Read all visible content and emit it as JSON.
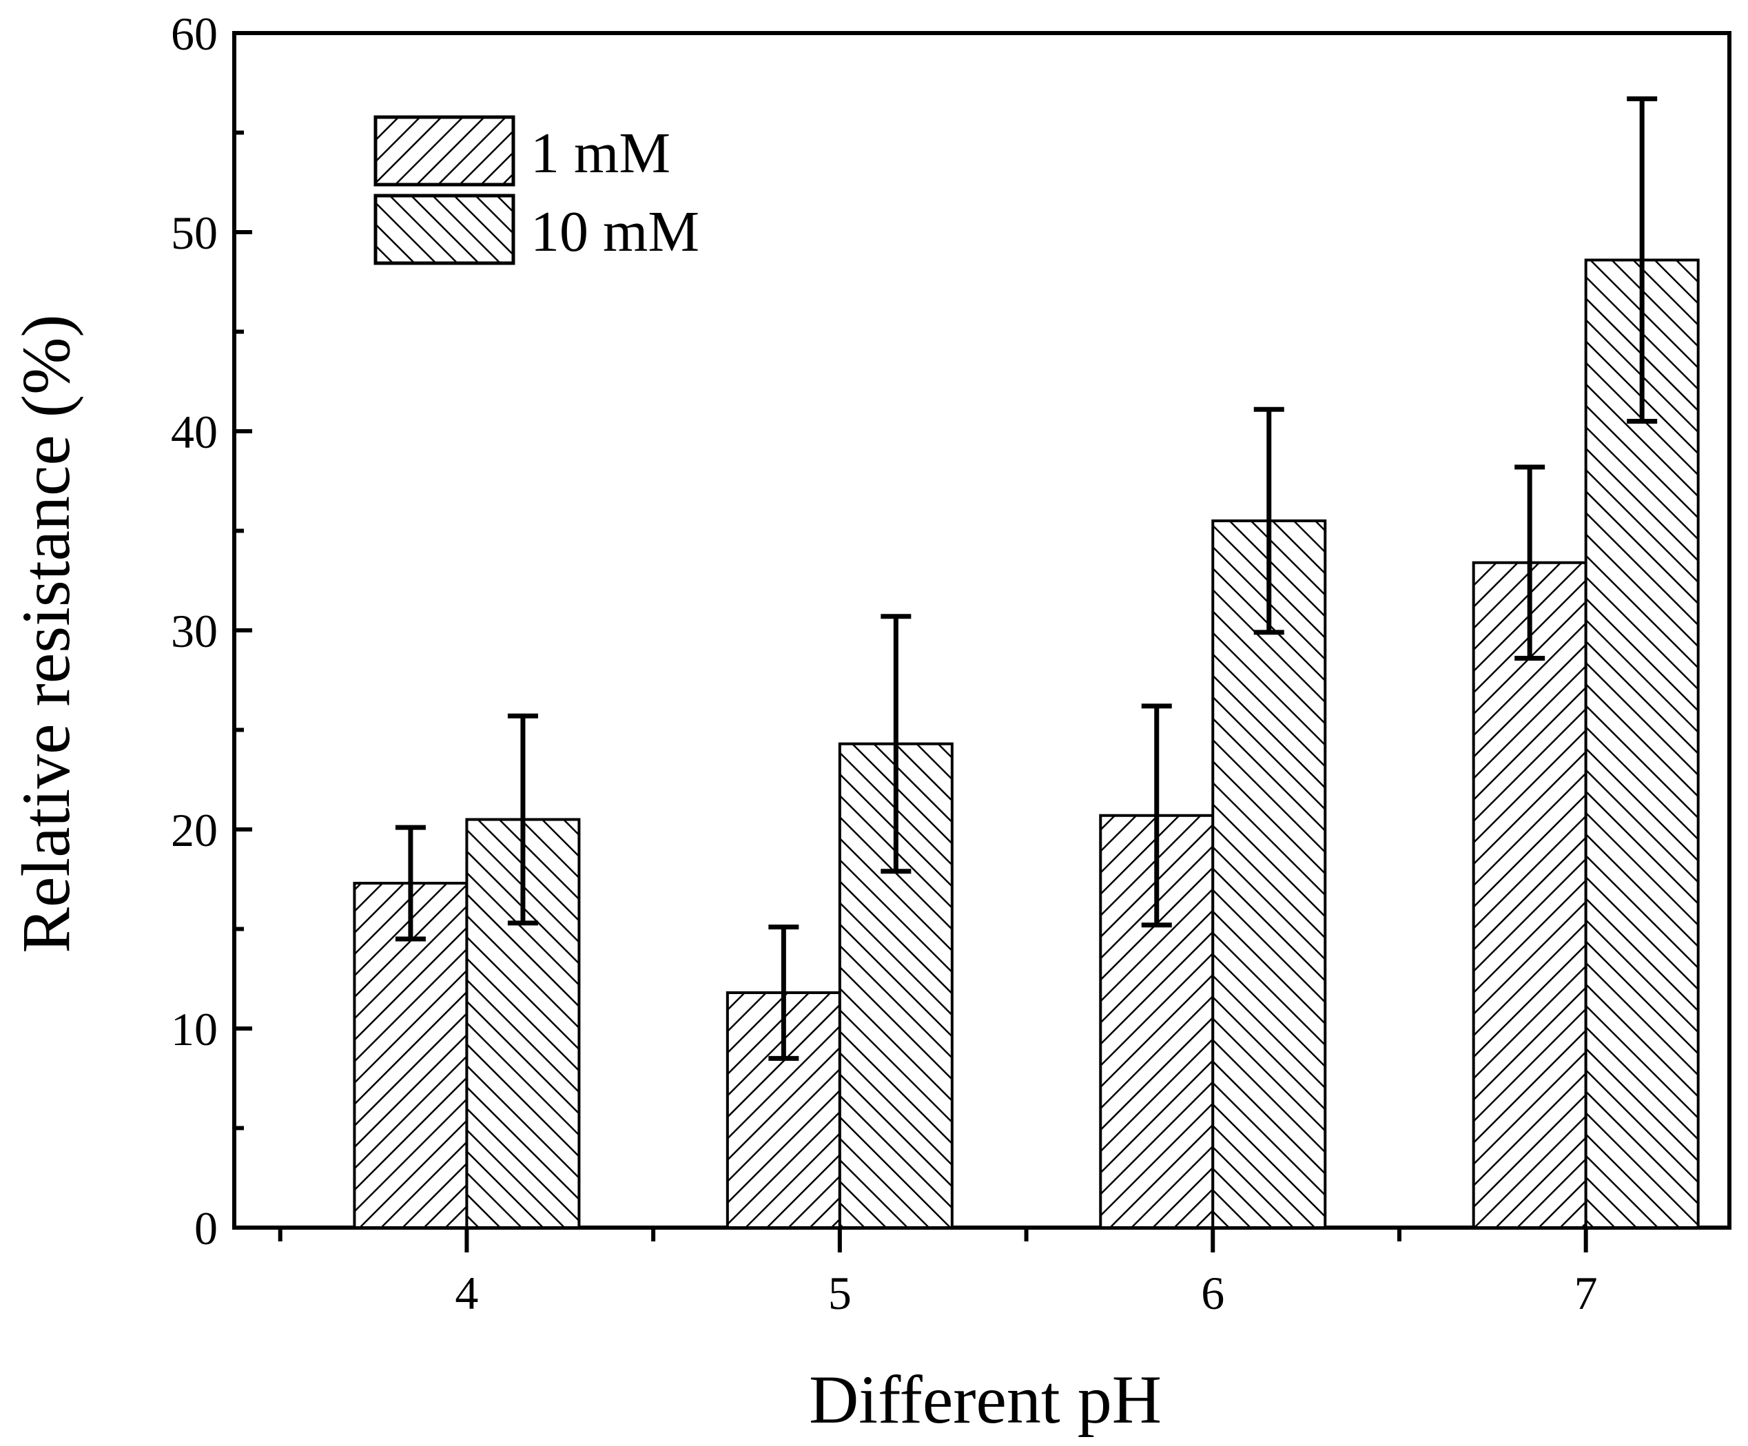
{
  "chart_data": {
    "type": "bar",
    "title": "",
    "xlabel": "Different pH",
    "ylabel": "Relative resistance (%)",
    "ylim": [
      0,
      60
    ],
    "yticks": [
      "0",
      "10",
      "20",
      "30",
      "40",
      "50",
      "60"
    ],
    "categories": [
      "4",
      "5",
      "6",
      "7"
    ],
    "legend_position": "top-left",
    "series": [
      {
        "name": "1 mM",
        "pattern": "hatch-forward",
        "values": [
          17.3,
          11.8,
          20.7,
          33.4
        ],
        "errors": [
          2.8,
          3.3,
          5.5,
          4.8
        ]
      },
      {
        "name": "10 mM",
        "pattern": "hatch-backward",
        "values": [
          20.5,
          24.3,
          35.5,
          48.6
        ],
        "errors": [
          5.2,
          6.4,
          5.6,
          8.1
        ]
      }
    ],
    "colors": {
      "bar_fill": "#ffffff",
      "stroke": "#000000",
      "background": "#ffffff"
    }
  }
}
